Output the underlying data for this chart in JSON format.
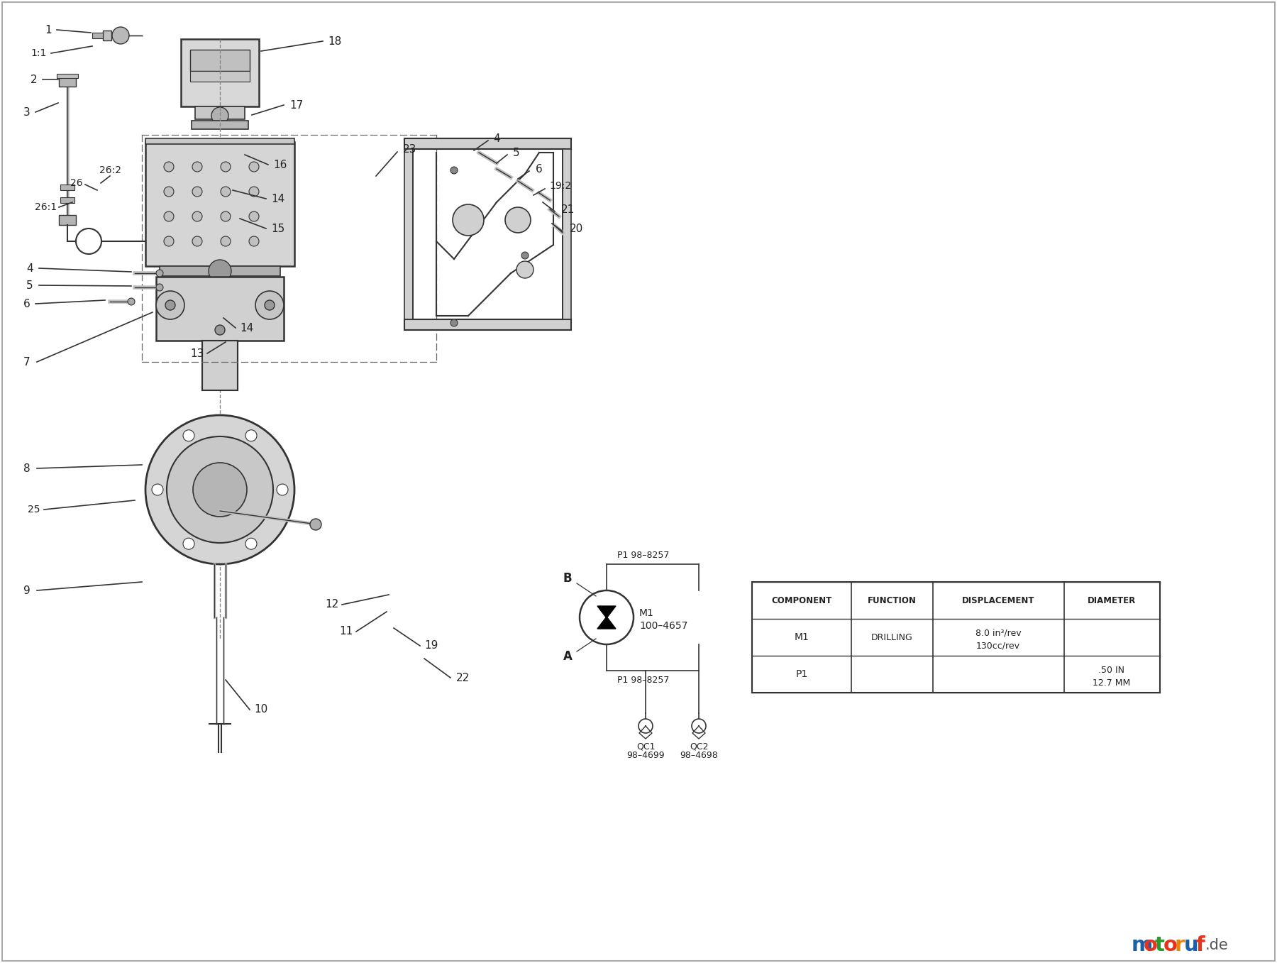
{
  "title": "",
  "bg_color": "#f2f2f2",
  "line_color": "#333333",
  "text_color": "#222222",
  "motoruf_colors": [
    "#1a5fa8",
    "#e8321e",
    "#2a9a2a",
    "#e8321e",
    "#e8840a",
    "#1a5fa8",
    "#e8321e"
  ],
  "table_headers": [
    "COMPONENT",
    "FUNCTION",
    "DISPLACEMENT",
    "DIAMETER"
  ],
  "table_rows": [
    [
      "M1",
      "DRILLING",
      "8.0 in³/rev\n130cc/rev",
      ""
    ],
    [
      "P1",
      "",
      "",
      ".50 IN\n12.7 MM"
    ]
  ]
}
